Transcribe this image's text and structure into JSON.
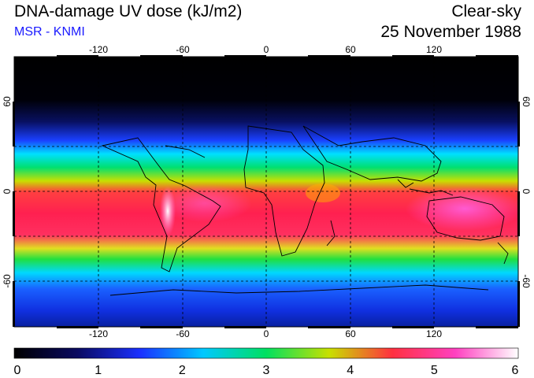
{
  "header": {
    "title": "DNA-damage UV dose (kJ/m2)",
    "organization": "MSR - KNMI",
    "mode": "Clear-sky",
    "date": "25 November 1988"
  },
  "map": {
    "lon_ticks": [
      "-120",
      "-60",
      "0",
      "60",
      "120"
    ],
    "lat_ticks_left": [
      "60",
      "0",
      "-60"
    ],
    "lat_ticks_right": [
      "60",
      "0",
      "-60"
    ],
    "lon_range": [
      -180,
      180
    ],
    "lat_range": [
      -90,
      90
    ],
    "grid": true
  },
  "colorbar": {
    "min": 0,
    "max": 6,
    "tick_labels": [
      "0",
      "1",
      "2",
      "3",
      "4",
      "5",
      "6"
    ],
    "colors": [
      "#000000",
      "#0a0a60",
      "#1a30ff",
      "#00c8ff",
      "#00e060",
      "#c8e000",
      "#ff3040",
      "#ff40c0",
      "#ffffff"
    ]
  }
}
